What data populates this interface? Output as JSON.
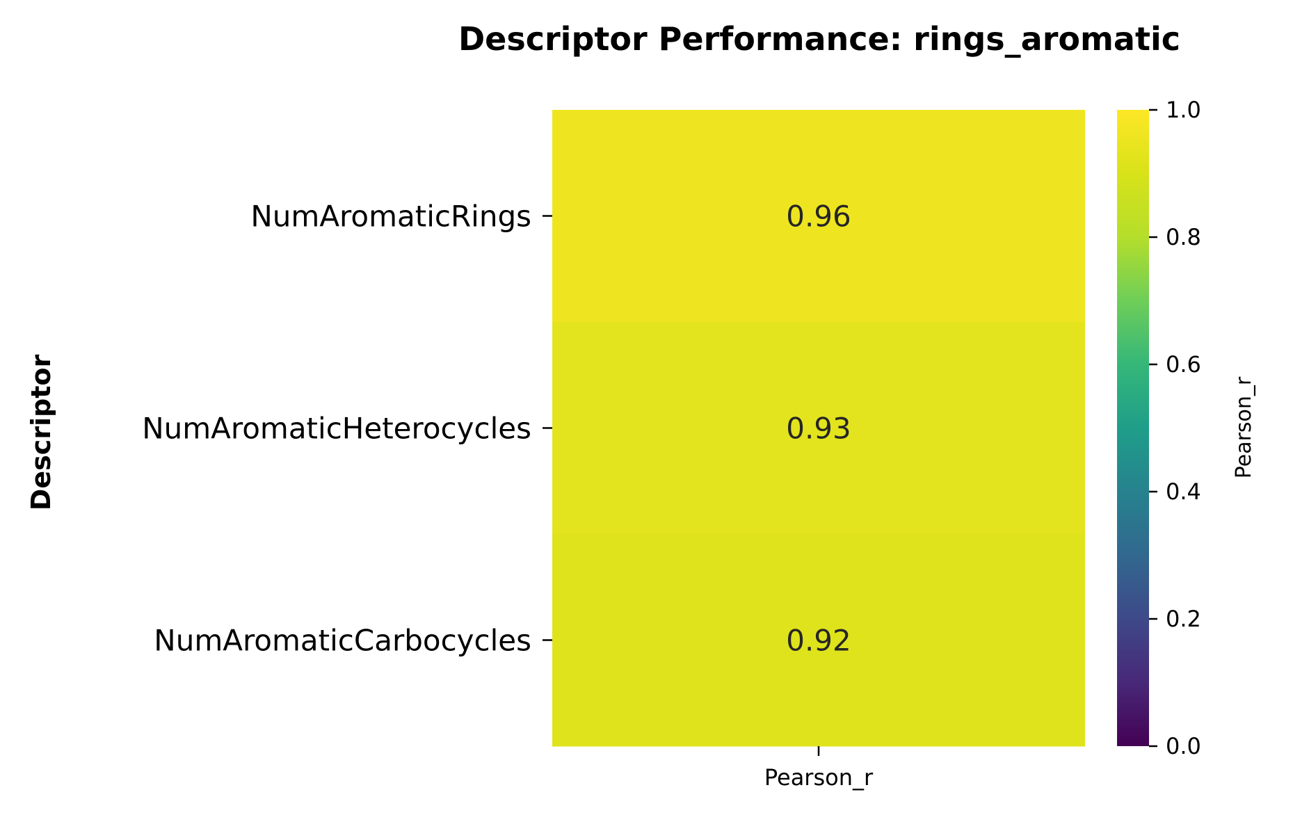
{
  "chart_data": {
    "type": "heatmap",
    "title": "Descriptor Performance: rings_aromatic",
    "ylabel": "Descriptor",
    "xlabel": "",
    "columns": [
      "Pearson_r"
    ],
    "rows": [
      "NumAromaticRings",
      "NumAromaticHeterocycles",
      "NumAromaticCarbocycles"
    ],
    "values": [
      [
        0.96
      ],
      [
        0.93
      ],
      [
        0.92
      ]
    ],
    "annotations": [
      "0.96",
      "0.93",
      "0.92"
    ],
    "colorbar": {
      "label": "Pearson_r",
      "range": [
        0.0,
        1.0
      ],
      "ticks": [
        0.0,
        0.2,
        0.4,
        0.6,
        0.8,
        1.0
      ],
      "tick_labels": [
        "0.0",
        "0.2",
        "0.4",
        "0.6",
        "0.8",
        "1.0"
      ],
      "colormap": "viridis"
    },
    "grid": false
  }
}
